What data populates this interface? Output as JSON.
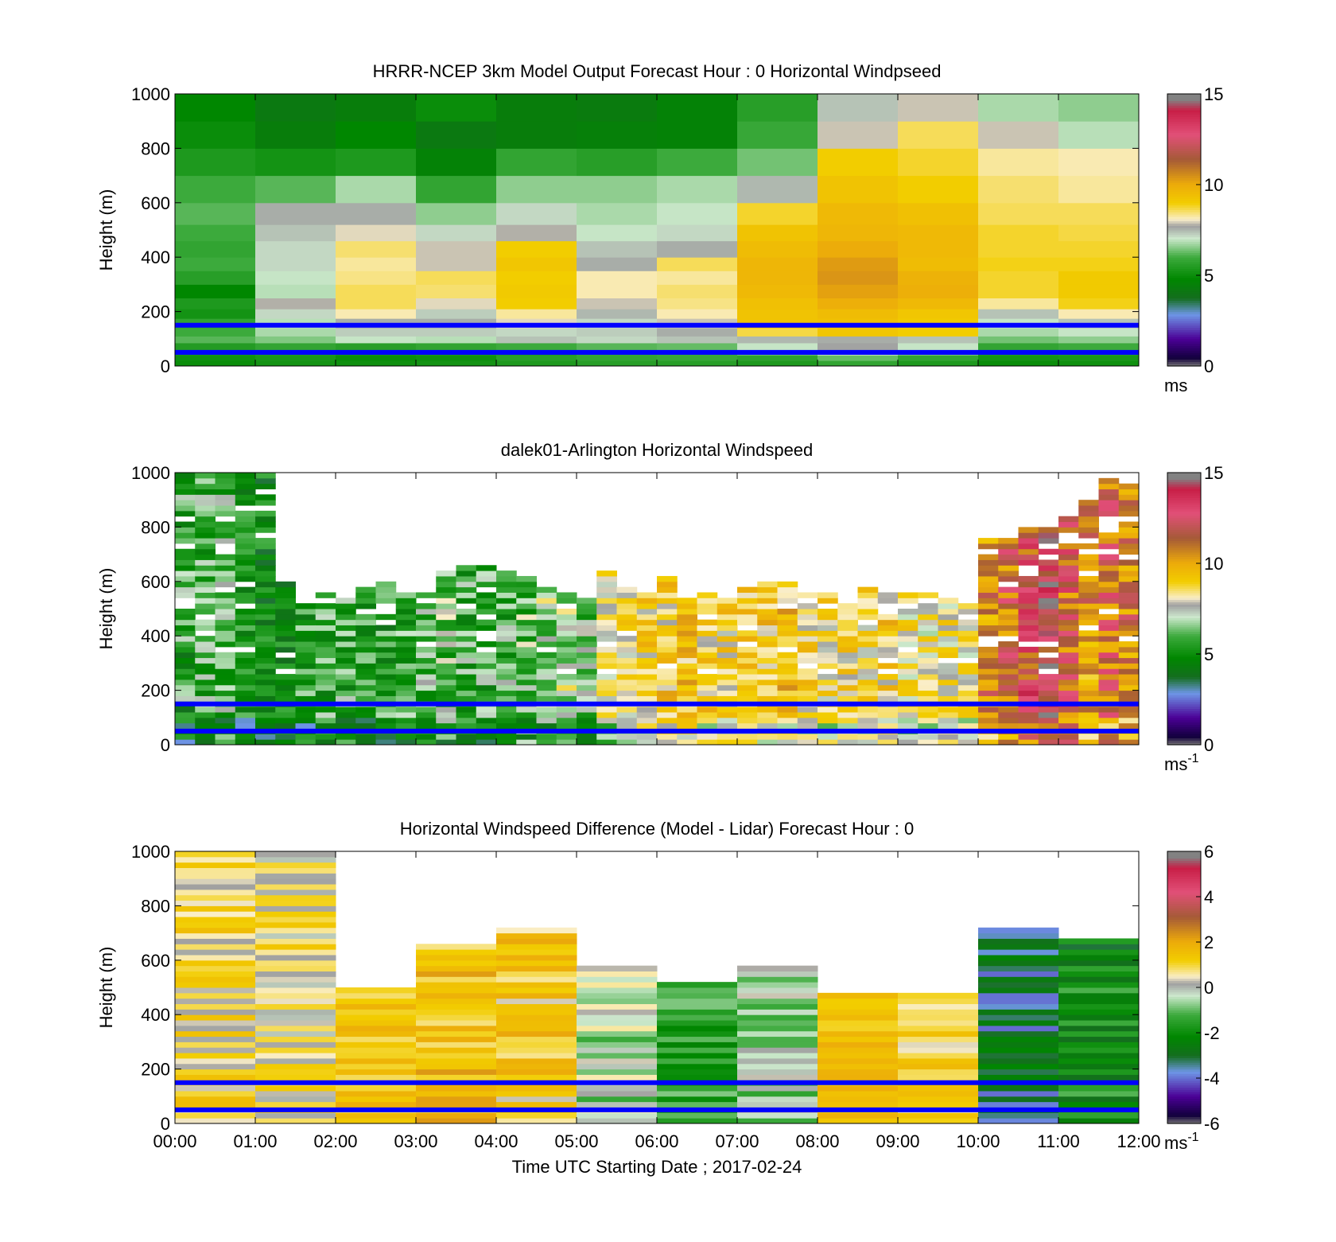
{
  "figure": {
    "xlabel": "Time UTC  Starting Date ; 2017-02-24"
  },
  "chart_data": [
    {
      "type": "heatmap",
      "title": "HRRR-NCEP 3km Model Output   Forecast Hour : 0 Horizontal Windpseed",
      "xlabel": "",
      "ylabel": "Height (m)",
      "xlim": [
        "00:00",
        "12:00"
      ],
      "ylim": [
        0,
        1000
      ],
      "ytick_labels": [
        "0",
        "200",
        "400",
        "600",
        "800",
        "1000"
      ],
      "xtick_labels": [],
      "colorbar": {
        "min": 0,
        "max": 15,
        "tick_labels": [
          "0",
          "5",
          "10",
          "15"
        ],
        "unit_base": "ms",
        "unit_sup": ""
      },
      "reference_lines_m": [
        150,
        50
      ],
      "x_hours": [
        0,
        1,
        2,
        3,
        4,
        5,
        6,
        7,
        8,
        9,
        10,
        11
      ],
      "y_levels_m": [
        0,
        20,
        40,
        60,
        85,
        110,
        140,
        175,
        210,
        250,
        300,
        350,
        400,
        460,
        520,
        600,
        700,
        800,
        900,
        1000
      ],
      "values": [
        [
          5.0,
          5.1,
          5.3,
          5.5,
          6.2,
          6.0,
          5.8,
          5.2,
          5.4,
          4.8,
          5.6,
          6.0,
          5.8,
          6.0,
          6.2,
          6.0,
          5.4,
          5.0,
          4.8
        ],
        [
          5.2,
          5.3,
          5.5,
          5.8,
          6.5,
          6.8,
          6.9,
          7.2,
          7.8,
          6.9,
          7.0,
          7.2,
          7.2,
          7.4,
          7.6,
          6.2,
          5.2,
          4.4,
          4.2
        ],
        [
          5.1,
          5.0,
          5.3,
          5.6,
          7.0,
          7.3,
          7.6,
          8.2,
          8.6,
          8.6,
          8.4,
          8.3,
          8.5,
          8.0,
          7.6,
          6.8,
          5.4,
          4.8,
          4.4
        ],
        [
          5.2,
          5.1,
          5.4,
          5.8,
          6.9,
          7.3,
          7.6,
          7.3,
          8.0,
          8.5,
          8.6,
          7.9,
          7.9,
          7.2,
          6.6,
          5.8,
          4.6,
          4.2,
          5.0
        ],
        [
          5.4,
          5.6,
          5.5,
          6.0,
          7.4,
          7.2,
          8.0,
          8.3,
          9.0,
          9.1,
          9.0,
          9.2,
          9.0,
          7.8,
          7.2,
          6.6,
          5.8,
          4.4,
          4.4
        ],
        [
          5.6,
          5.8,
          5.9,
          6.2,
          7.2,
          7.3,
          7.2,
          7.5,
          7.9,
          8.2,
          8.2,
          7.6,
          7.4,
          7.0,
          6.8,
          6.6,
          5.6,
          4.5,
          4.3
        ],
        [
          5.6,
          5.9,
          6.0,
          6.3,
          7.4,
          7.6,
          7.9,
          8.2,
          8.4,
          8.5,
          8.3,
          8.6,
          7.6,
          7.2,
          7.0,
          6.8,
          6.0,
          4.6,
          4.6
        ],
        [
          5.4,
          5.7,
          6.4,
          7.0,
          7.5,
          8.7,
          9.3,
          9.3,
          9.4,
          9.6,
          9.7,
          9.7,
          9.5,
          9.3,
          8.8,
          7.5,
          6.4,
          5.9,
          5.6
        ],
        [
          5.8,
          6.3,
          7.0,
          7.7,
          7.6,
          9.2,
          9.4,
          9.5,
          9.9,
          10.2,
          10.4,
          10.3,
          10.0,
          9.7,
          9.6,
          9.3,
          9.0,
          7.9,
          7.4
        ],
        [
          5.4,
          5.8,
          6.5,
          7.0,
          7.4,
          9.0,
          9.1,
          9.2,
          9.6,
          9.9,
          9.8,
          9.5,
          9.6,
          9.6,
          9.4,
          9.0,
          8.8,
          8.6,
          7.9
        ],
        [
          5.0,
          5.2,
          5.5,
          5.8,
          6.4,
          6.8,
          7.0,
          7.4,
          8.3,
          8.8,
          8.8,
          8.9,
          8.8,
          8.8,
          8.6,
          8.5,
          8.3,
          7.9,
          6.8
        ],
        [
          5.1,
          5.3,
          5.6,
          6.0,
          6.6,
          7.0,
          7.4,
          8.2,
          8.9,
          9.1,
          9.1,
          8.9,
          8.8,
          8.7,
          8.6,
          8.3,
          8.2,
          6.9,
          6.6
        ]
      ]
    },
    {
      "type": "heatmap",
      "title": "dalek01-Arlington  Horizontal Windspeed",
      "xlabel": "",
      "ylabel": "Height (m)",
      "xlim": [
        "00:00",
        "12:00"
      ],
      "ylim": [
        0,
        1000
      ],
      "ytick_labels": [
        "0",
        "200",
        "400",
        "600",
        "800",
        "1000"
      ],
      "xtick_labels": [],
      "colorbar": {
        "min": 0,
        "max": 15,
        "tick_labels": [
          "0",
          "5",
          "10",
          "15"
        ],
        "unit_base": "ms",
        "unit_sup": "-1"
      },
      "reference_lines_m": [
        150,
        50
      ],
      "x_step_hours": 0.25,
      "n_columns": 48,
      "y_step_m": 20,
      "n_rows": 50,
      "column_top_m": [
        1000,
        1000,
        1000,
        1000,
        1000,
        600,
        520,
        560,
        540,
        580,
        600,
        560,
        560,
        640,
        660,
        660,
        640,
        620,
        580,
        560,
        540,
        640,
        580,
        560,
        620,
        540,
        560,
        540,
        580,
        600,
        600,
        580,
        560,
        520,
        580,
        560,
        560,
        560,
        540,
        520,
        760,
        760,
        800,
        820,
        860,
        900,
        970,
        960
      ],
      "column_mean_ms": [
        5.5,
        5.8,
        6.2,
        5.2,
        5.0,
        5.2,
        5.6,
        5.9,
        5.8,
        5.6,
        5.4,
        5.7,
        6.2,
        6.4,
        5.9,
        5.8,
        6.0,
        6.5,
        7.0,
        7.2,
        6.6,
        7.9,
        8.4,
        8.8,
        9.0,
        9.2,
        8.9,
        8.7,
        9.1,
        9.0,
        9.3,
        8.8,
        8.6,
        8.7,
        8.6,
        8.9,
        8.2,
        8.0,
        8.3,
        8.1,
        10.6,
        11.2,
        12.4,
        13.2,
        11.8,
        10.4,
        11.4,
        10.8
      ],
      "column_spread_ms": [
        1.8,
        1.6,
        1.6,
        1.4,
        1.4,
        1.5,
        1.6,
        1.7,
        1.6,
        1.5,
        1.5,
        1.5,
        1.6,
        1.7,
        1.6,
        1.6,
        1.6,
        1.7,
        1.7,
        1.7,
        1.6,
        1.4,
        1.3,
        1.3,
        1.3,
        1.3,
        1.3,
        1.3,
        1.3,
        1.3,
        1.3,
        1.3,
        1.3,
        1.3,
        1.3,
        1.3,
        1.3,
        1.3,
        1.3,
        1.3,
        1.6,
        1.7,
        1.9,
        2.1,
        1.9,
        1.7,
        1.8,
        1.7
      ]
    },
    {
      "type": "heatmap",
      "title": "Horizontal Windspeed Difference (Model - Lidar) Forecast Hour : 0",
      "xlabel": "Time UTC  Starting Date ; 2017-02-24",
      "ylabel": "Height (m)",
      "xlim": [
        "00:00",
        "12:00"
      ],
      "ylim": [
        0,
        1000
      ],
      "ytick_labels": [
        "0",
        "200",
        "400",
        "600",
        "800",
        "1000"
      ],
      "xtick_labels": [
        "00:00",
        "01:00",
        "02:00",
        "03:00",
        "04:00",
        "05:00",
        "06:00",
        "07:00",
        "08:00",
        "09:00",
        "10:00",
        "11:00",
        "12:00"
      ],
      "colorbar": {
        "min": -6,
        "max": 6,
        "tick_labels": [
          "-6",
          "-4",
          "-2",
          "0",
          "2",
          "4",
          "6"
        ],
        "unit_base": "ms",
        "unit_sup": "-1"
      },
      "reference_lines_m": [
        150,
        50
      ],
      "x_hours": [
        0,
        1,
        2,
        3,
        4,
        5,
        6,
        7,
        8,
        9,
        10,
        11
      ],
      "y_step_m": 20,
      "n_rows": 50,
      "column_top_m": [
        1000,
        1000,
        500,
        660,
        720,
        580,
        520,
        580,
        480,
        480,
        720,
        680
      ],
      "column_mean_diff": [
        0.9,
        0.6,
        1.4,
        1.5,
        1.2,
        -0.3,
        -1.5,
        -0.5,
        1.5,
        1.0,
        -3.2,
        -2.0
      ],
      "column_spread_diff": [
        0.8,
        0.8,
        0.6,
        0.8,
        0.9,
        1.0,
        0.8,
        0.9,
        0.5,
        0.7,
        1.0,
        1.1
      ]
    }
  ]
}
